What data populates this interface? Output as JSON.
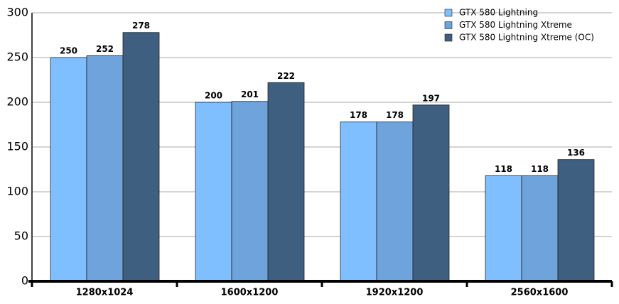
{
  "chart_data": {
    "type": "bar",
    "categories": [
      "1280x1024",
      "1600x1200",
      "1920x1200",
      "2560x1600"
    ],
    "series": [
      {
        "name": "GTX 580 Lightning",
        "color": "#80bfff",
        "values": [
          250,
          200,
          178,
          118
        ]
      },
      {
        "name": "GTX 580 Lightning Xtreme",
        "color": "#6fa3dc",
        "values": [
          252,
          201,
          178,
          118
        ]
      },
      {
        "name": "GTX 580 Lightning Xtreme (OC)",
        "color": "#3f5f80",
        "values": [
          278,
          222,
          197,
          136
        ]
      }
    ],
    "ylim": [
      0,
      300
    ],
    "yticks": [
      0,
      50,
      100,
      150,
      200,
      250,
      300
    ],
    "grid": true,
    "legend": "top-right"
  }
}
